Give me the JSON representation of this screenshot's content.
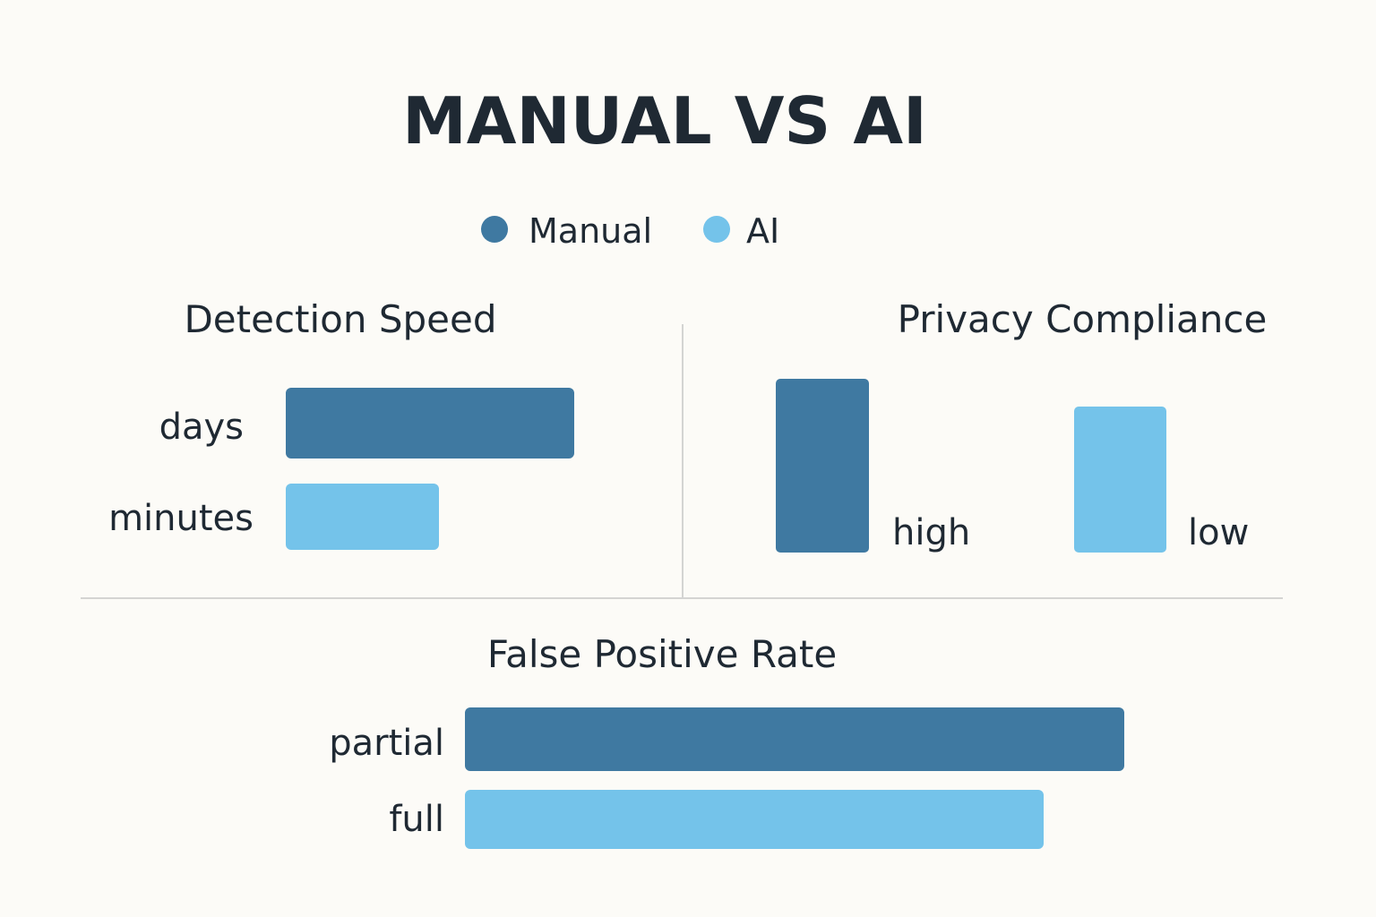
{
  "chart_data": {
    "title": "MANUAL VS AI",
    "legend": [
      {
        "name": "Manual",
        "color": "#3f79a1"
      },
      {
        "name": "AI",
        "color": "#74c3ea"
      }
    ],
    "legend_position": "top-center",
    "panels": [
      {
        "title": "Detection Speed",
        "type": "bar",
        "orientation": "horizontal",
        "series": [
          {
            "name": "Manual",
            "label": "days"
          },
          {
            "name": "AI",
            "label": "minutes"
          }
        ]
      },
      {
        "title": "Privacy Compliance",
        "type": "bar",
        "orientation": "vertical",
        "series": [
          {
            "name": "Manual",
            "label": "high"
          },
          {
            "name": "AI",
            "label": "low"
          }
        ]
      },
      {
        "title": "False Positive Rate",
        "type": "bar",
        "orientation": "horizontal",
        "series": [
          {
            "name": "Manual",
            "label": "partial"
          },
          {
            "name": "AI",
            "label": "full"
          }
        ]
      }
    ]
  }
}
